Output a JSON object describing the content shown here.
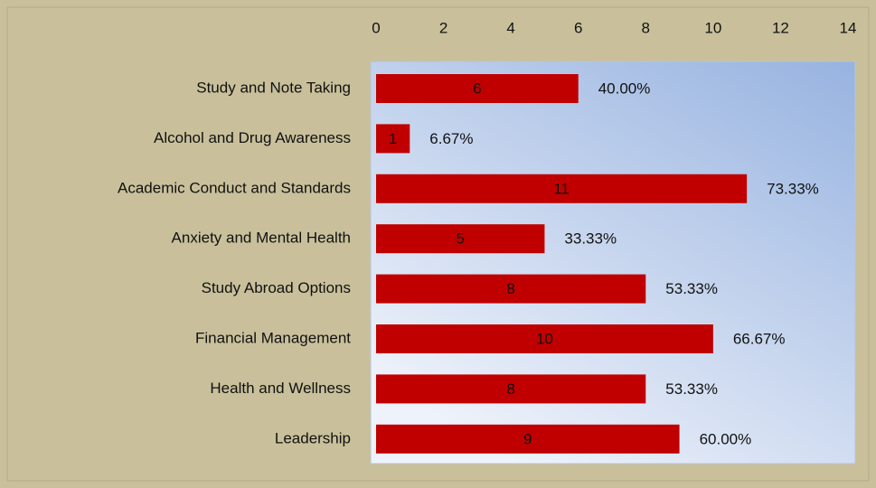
{
  "chart_data": {
    "type": "bar",
    "orientation": "horizontal",
    "categories": [
      "Study and Note Taking",
      "Alcohol and Drug Awareness",
      "Academic Conduct and Standards",
      "Anxiety and Mental Health",
      "Study Abroad Options",
      "Financial Management",
      "Health and Wellness",
      "Leadership"
    ],
    "values": [
      6,
      1,
      11,
      5,
      8,
      10,
      8,
      9
    ],
    "percent_labels": [
      "40.00%",
      "6.67%",
      "73.33%",
      "33.33%",
      "53.33%",
      "66.67%",
      "53.33%",
      "60.00%"
    ],
    "color": "#c00000",
    "xlim": [
      0,
      14
    ],
    "xticks": [
      0,
      2,
      4,
      6,
      8,
      10,
      12,
      14
    ]
  }
}
